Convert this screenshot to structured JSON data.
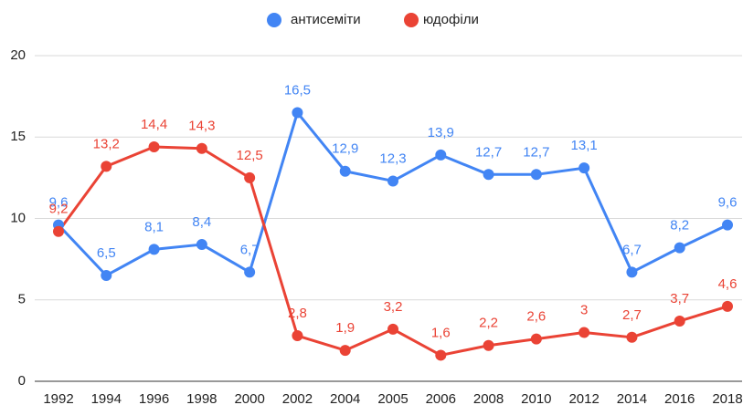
{
  "chart_data": {
    "type": "line",
    "categories": [
      "1992",
      "1994",
      "1996",
      "1998",
      "2000",
      "2002",
      "2004",
      "2005",
      "2006",
      "2008",
      "2010",
      "2012",
      "2014",
      "2016",
      "2018"
    ],
    "series": [
      {
        "name": "антисеміти",
        "color": "#4285f4",
        "values": [
          9.6,
          6.5,
          8.1,
          8.4,
          6.7,
          16.5,
          12.9,
          12.3,
          13.9,
          12.7,
          12.7,
          13.1,
          6.7,
          8.2,
          9.6
        ],
        "value_labels": [
          "9,6",
          "6,5",
          "8,1",
          "8,4",
          "6,7",
          "16,5",
          "12,9",
          "12,3",
          "13,9",
          "12,7",
          "12,7",
          "13,1",
          "6,7",
          "8,2",
          "9,6"
        ]
      },
      {
        "name": "юдофіли",
        "color": "#ea4335",
        "values": [
          9.2,
          13.2,
          14.4,
          14.3,
          12.5,
          2.8,
          1.9,
          3.2,
          1.6,
          2.2,
          2.6,
          3,
          2.7,
          3.7,
          4.6
        ],
        "value_labels": [
          "9,2",
          "13,2",
          "14,4",
          "14,3",
          "12,5",
          "2,8",
          "1,9",
          "3,2",
          "1,6",
          "2,2",
          "2,6",
          "3",
          "2,7",
          "3,7",
          "4,6"
        ]
      }
    ],
    "ylim": [
      0,
      20
    ],
    "yticks": [
      0,
      5,
      10,
      15,
      20
    ],
    "grid": true,
    "legend": "top"
  }
}
